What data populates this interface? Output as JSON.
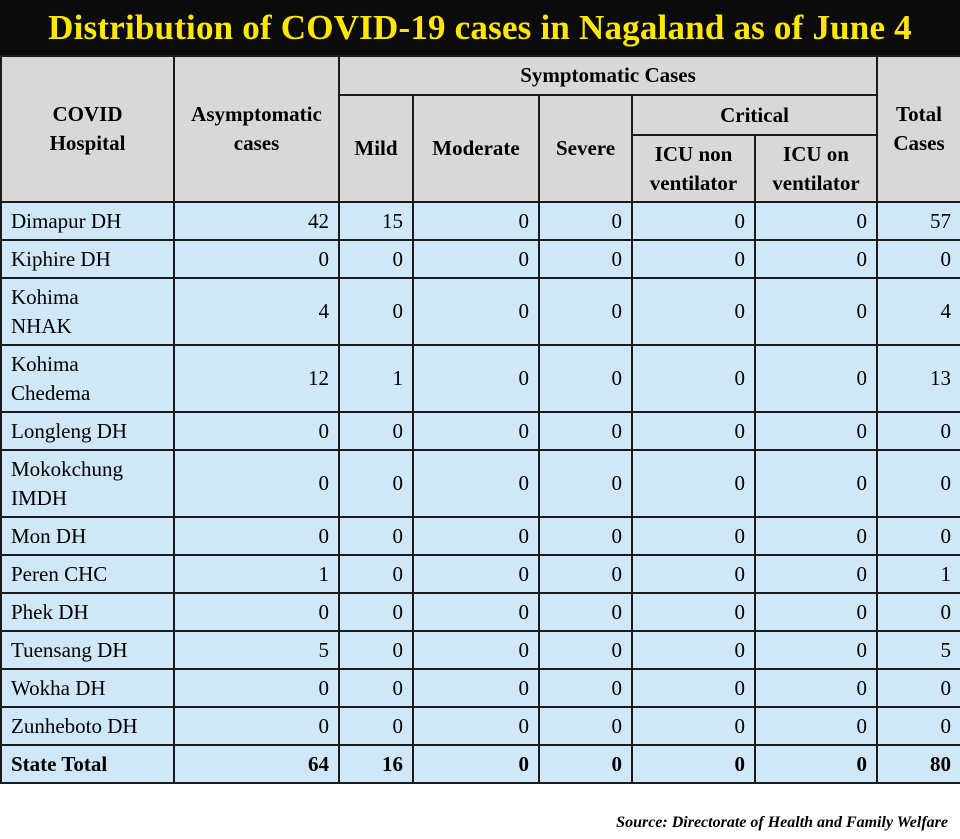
{
  "title": "Distribution of COVID-19 cases in Nagaland as of June 4",
  "headers": {
    "hospital": "COVID Hospital",
    "asymptomatic": "Asymptomatic cases",
    "symptomatic_group": "Symptomatic Cases",
    "mild": "Mild",
    "moderate": "Moderate",
    "severe": "Severe",
    "critical_group": "Critical",
    "icu_non_ventilator": "ICU non ventilator",
    "icu_on_ventilator": "ICU on ventilator",
    "total": "Total Cases"
  },
  "rows": [
    {
      "hospital": "Dimapur DH",
      "asymptomatic": "42",
      "mild": "15",
      "moderate": "0",
      "severe": "0",
      "icu_non_ventilator": "0",
      "icu_on_ventilator": "0",
      "total": "57"
    },
    {
      "hospital": "Kiphire DH",
      "asymptomatic": "0",
      "mild": "0",
      "moderate": "0",
      "severe": "0",
      "icu_non_ventilator": "0",
      "icu_on_ventilator": "0",
      "total": "0"
    },
    {
      "hospital": "Kohima NHAK",
      "asymptomatic": "4",
      "mild": "0",
      "moderate": "0",
      "severe": "0",
      "icu_non_ventilator": "0",
      "icu_on_ventilator": "0",
      "total": "4"
    },
    {
      "hospital": "Kohima Chedema",
      "asymptomatic": "12",
      "mild": "1",
      "moderate": "0",
      "severe": "0",
      "icu_non_ventilator": "0",
      "icu_on_ventilator": "0",
      "total": "13"
    },
    {
      "hospital": "Longleng DH",
      "asymptomatic": "0",
      "mild": "0",
      "moderate": "0",
      "severe": "0",
      "icu_non_ventilator": "0",
      "icu_on_ventilator": "0",
      "total": "0"
    },
    {
      "hospital": "Mokokchung IMDH",
      "asymptomatic": "0",
      "mild": "0",
      "moderate": "0",
      "severe": "0",
      "icu_non_ventilator": "0",
      "icu_on_ventilator": "0",
      "total": "0"
    },
    {
      "hospital": "Mon DH",
      "asymptomatic": "0",
      "mild": "0",
      "moderate": "0",
      "severe": "0",
      "icu_non_ventilator": "0",
      "icu_on_ventilator": "0",
      "total": "0"
    },
    {
      "hospital": "Peren CHC",
      "asymptomatic": "1",
      "mild": "0",
      "moderate": "0",
      "severe": "0",
      "icu_non_ventilator": "0",
      "icu_on_ventilator": "0",
      "total": "1"
    },
    {
      "hospital": "Phek DH",
      "asymptomatic": "0",
      "mild": "0",
      "moderate": "0",
      "severe": "0",
      "icu_non_ventilator": "0",
      "icu_on_ventilator": "0",
      "total": "0"
    },
    {
      "hospital": "Tuensang DH",
      "asymptomatic": "5",
      "mild": "0",
      "moderate": "0",
      "severe": "0",
      "icu_non_ventilator": "0",
      "icu_on_ventilator": "0",
      "total": "5"
    },
    {
      "hospital": "Wokha DH",
      "asymptomatic": "0",
      "mild": "0",
      "moderate": "0",
      "severe": "0",
      "icu_non_ventilator": "0",
      "icu_on_ventilator": "0",
      "total": "0"
    },
    {
      "hospital": "Zunheboto DH",
      "asymptomatic": "0",
      "mild": "0",
      "moderate": "0",
      "severe": "0",
      "icu_non_ventilator": "0",
      "icu_on_ventilator": "0",
      "total": "0"
    }
  ],
  "state_total": {
    "hospital": "State Total",
    "asymptomatic": "64",
    "mild": "16",
    "moderate": "0",
    "severe": "0",
    "icu_non_ventilator": "0",
    "icu_on_ventilator": "0",
    "total": "80"
  },
  "source": "Source: Directorate of Health and Family Welfare",
  "colors": {
    "title_background": "#0b0b0b",
    "title_text": "#ffe800",
    "header_background": "#d8d8d8",
    "cell_background": "#cfe7f7",
    "border": "#1a1a1a"
  }
}
